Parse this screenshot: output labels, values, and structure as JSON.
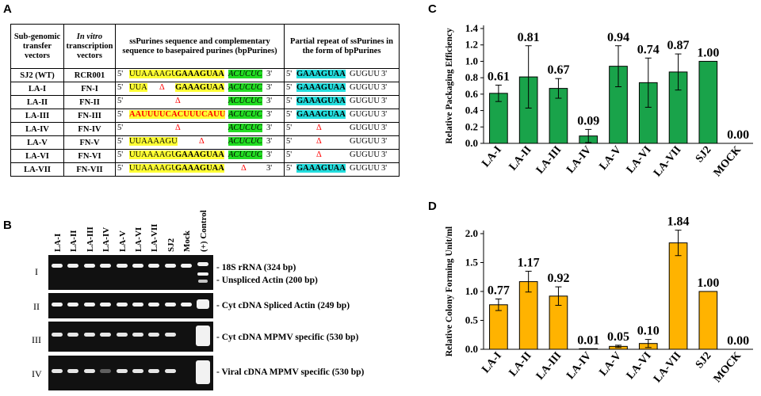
{
  "panels": {
    "a": "A",
    "b": "B",
    "c": "C",
    "d": "D"
  },
  "table": {
    "headers": {
      "col1": "Sub-genomic transfer vectors",
      "col2_italic": "In vitro",
      "col2_rest": "transcription vectors",
      "col3": "ssPurines sequence and complementary sequence to basepaired purines (bpPurines)",
      "col4": "Partial repeat of ssPurines in the form of bpPurines"
    },
    "rows": [
      {
        "vector": "SJ2 (WT)",
        "ivt": "RCR001"
      },
      {
        "vector": "LA-I",
        "ivt": "FN-I"
      },
      {
        "vector": "LA-II",
        "ivt": "FN-II"
      },
      {
        "vector": "LA-III",
        "ivt": "FN-III"
      },
      {
        "vector": "LA-IV",
        "ivt": "FN-IV"
      },
      {
        "vector": "LA-V",
        "ivt": "FN-V"
      },
      {
        "vector": "LA-VI",
        "ivt": "FN-VI"
      },
      {
        "vector": "LA-VII",
        "ivt": "FN-VII"
      }
    ],
    "seq": {
      "five": "5'",
      "three": "3'",
      "uuaa": "UUAAAAGU",
      "uua": "UUA",
      "gaag": "GAAAGUAA",
      "acucuc": "ACUCUC",
      "aauu": "AAUUUUCACUUUCAUU",
      "delta": "Δ",
      "guguu": "GUGUU"
    },
    "colors": {
      "yellow": "#ffff33",
      "green": "#22dd22",
      "cyan": "#22dddd",
      "red": "#ff0000"
    }
  },
  "gel": {
    "lanes": [
      "LA-I",
      "LA-II",
      "LA-III",
      "LA-IV",
      "LA-V",
      "LA-VI",
      "LA-VII",
      "SJ2",
      "Mock",
      "(+) Control"
    ],
    "rows": [
      "I",
      "II",
      "III",
      "IV"
    ],
    "labels": {
      "r1a": "- 18S rRNA (324 bp)",
      "r1b": "- Unspliced Actin (200 bp)",
      "r2": "- Cyt cDNA Spliced Actin (249 bp)",
      "r3": "- Cyt cDNA MPMV specific (530 bp)",
      "r4": "- Viral cDNA MPMV specific (530 bp)"
    }
  },
  "chart_data": [
    {
      "type": "bar",
      "categories": [
        "LA-I",
        "LA-II",
        "LA-III",
        "LA-IV",
        "LA-V",
        "LA-VI",
        "LA-VII",
        "SJ2",
        "MOCK"
      ],
      "values": [
        0.61,
        0.81,
        0.67,
        0.09,
        0.94,
        0.74,
        0.87,
        1.0,
        0.0
      ],
      "value_labels": [
        "0.61",
        "0.81",
        "0.67",
        "0.09",
        "0.94",
        "0.74",
        "0.87",
        "1.00",
        "0.00"
      ],
      "errors": [
        0.1,
        0.38,
        0.12,
        0.08,
        0.25,
        0.3,
        0.22,
        0,
        0
      ],
      "ylabel": "Relative Packaging Efficiency",
      "ylim": [
        0,
        1.4
      ],
      "yticks": [
        "0.0",
        "0.2",
        "0.4",
        "0.6",
        "0.8",
        "1.0",
        "1.2",
        "1.4"
      ],
      "color": "#19a34a",
      "grid": false
    },
    {
      "type": "bar",
      "categories": [
        "LA-I",
        "LA-II",
        "LA-III",
        "LA-IV",
        "LA-V",
        "LA-VI",
        "LA-VII",
        "SJ2",
        "MOCK"
      ],
      "values": [
        0.77,
        1.17,
        0.92,
        0.01,
        0.05,
        0.1,
        1.84,
        1.0,
        0.0
      ],
      "value_labels": [
        "0.77",
        "1.17",
        "0.92",
        "0.01",
        "0.05",
        "0.10",
        "1.84",
        "1.00",
        "0.00"
      ],
      "errors": [
        0.1,
        0.18,
        0.16,
        0,
        0.02,
        0.07,
        0.22,
        0,
        0
      ],
      "ylabel": "Relative Colony Forming Unit/ml",
      "ylim": [
        0,
        2.0
      ],
      "yticks": [
        "0.0",
        "0.5",
        "1.0",
        "1.5",
        "2.0"
      ],
      "color": "#ffb300",
      "grid": false
    }
  ]
}
